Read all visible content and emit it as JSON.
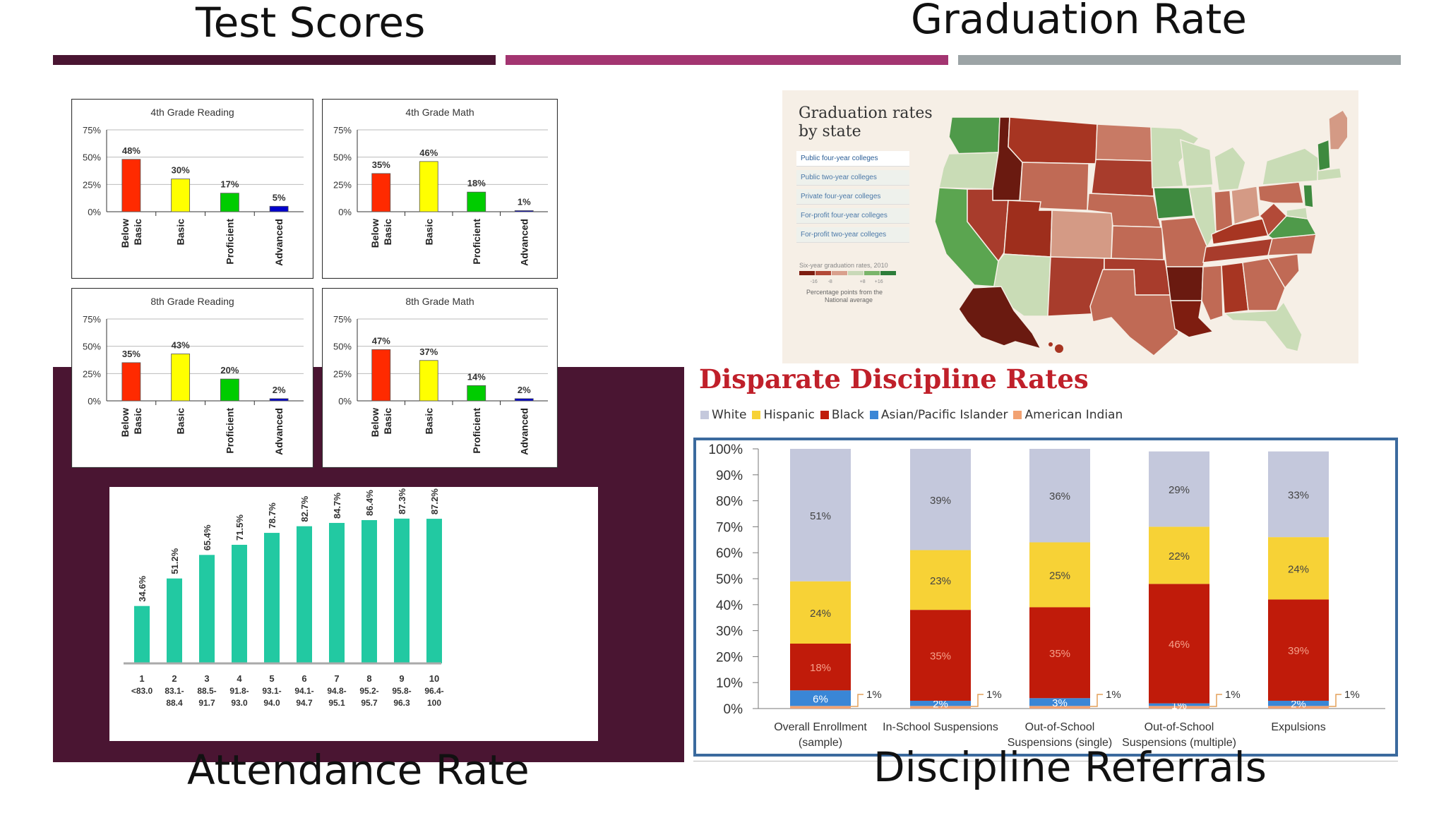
{
  "sections": {
    "test_scores": "Test Scores",
    "graduation_rate": "Graduation Rate",
    "attendance_rate": "Attendance Rate",
    "discipline_referrals": "Discipline Referrals"
  },
  "colors": {
    "plum": "#4a1532",
    "magenta": "#a33571",
    "gray": "#9ca4a6",
    "below_basic": "#ff2a00",
    "basic": "#ffff00",
    "proficient": "#00cc00",
    "advanced": "#0000cc",
    "attendance": "#22c9a2",
    "white": "#c4c8dc",
    "hispanic": "#f7d236",
    "black": "#c01b0a",
    "asian": "#3a86d6",
    "american_indian": "#f2a272"
  },
  "test_charts": [
    {
      "title": "4th Grade Reading",
      "categories": [
        "Below Basic",
        "Basic",
        "Proficient",
        "Advanced"
      ],
      "values": [
        48,
        30,
        17,
        5
      ],
      "labels": [
        "48%",
        "30%",
        "17%",
        "5%"
      ],
      "y_ticks": [
        "75%",
        "50%",
        "25%",
        "0%"
      ],
      "ylim": [
        0,
        75
      ]
    },
    {
      "title": "4th Grade Math",
      "categories": [
        "Below Basic",
        "Basic",
        "Proficient",
        "Advanced"
      ],
      "values": [
        35,
        46,
        18,
        1
      ],
      "labels": [
        "35%",
        "46%",
        "18%",
        "1%"
      ],
      "y_ticks": [
        "75%",
        "50%",
        "25%",
        "0%"
      ],
      "ylim": [
        0,
        75
      ]
    },
    {
      "title": "8th Grade Reading",
      "categories": [
        "Below Basic",
        "Basic",
        "Proficient",
        "Advanced"
      ],
      "values": [
        35,
        43,
        20,
        2
      ],
      "labels": [
        "35%",
        "43%",
        "20%",
        "2%"
      ],
      "y_ticks": [
        "75%",
        "50%",
        "25%",
        "0%"
      ],
      "ylim": [
        0,
        75
      ]
    },
    {
      "title": "8th Grade Math",
      "categories": [
        "Below Basic",
        "Basic",
        "Proficient",
        "Advanced"
      ],
      "values": [
        47,
        37,
        14,
        2
      ],
      "labels": [
        "47%",
        "37%",
        "14%",
        "2%"
      ],
      "y_ticks": [
        "75%",
        "50%",
        "25%",
        "0%"
      ],
      "ylim": [
        0,
        75
      ]
    }
  ],
  "chart_data": [
    {
      "type": "bar",
      "title": "4th Grade Reading",
      "categories": [
        "Below Basic",
        "Basic",
        "Proficient",
        "Advanced"
      ],
      "values": [
        48,
        30,
        17,
        5
      ],
      "ylim": [
        0,
        75
      ]
    },
    {
      "type": "bar",
      "title": "4th Grade Math",
      "categories": [
        "Below Basic",
        "Basic",
        "Proficient",
        "Advanced"
      ],
      "values": [
        35,
        46,
        18,
        1
      ],
      "ylim": [
        0,
        75
      ]
    },
    {
      "type": "bar",
      "title": "8th Grade Reading",
      "categories": [
        "Below Basic",
        "Basic",
        "Proficient",
        "Advanced"
      ],
      "values": [
        35,
        43,
        20,
        2
      ],
      "ylim": [
        0,
        75
      ]
    },
    {
      "type": "bar",
      "title": "8th Grade Math",
      "categories": [
        "Below Basic",
        "Basic",
        "Proficient",
        "Advanced"
      ],
      "values": [
        47,
        37,
        14,
        2
      ],
      "ylim": [
        0,
        75
      ]
    },
    {
      "type": "bar",
      "title": "",
      "categories": [
        "1",
        "2",
        "3",
        "4",
        "5",
        "6",
        "7",
        "8",
        "9",
        "10"
      ],
      "values": [
        34.6,
        51.2,
        65.4,
        71.5,
        78.7,
        82.7,
        84.7,
        86.4,
        87.3,
        87.2
      ],
      "ylim": [
        0,
        100
      ]
    },
    {
      "type": "bar",
      "title": "Disparate Discipline Rates",
      "categories": [
        "Overall Enrollment (sample)",
        "In-School Suspensions",
        "Out-of-School Suspensions (single)",
        "Out-of-School Suspensions (multiple)",
        "Expulsions"
      ],
      "series": [
        {
          "name": "American Indian",
          "values": [
            1,
            1,
            1,
            1,
            1
          ]
        },
        {
          "name": "Asian/Pacific Islander",
          "values": [
            6,
            2,
            3,
            1,
            2
          ]
        },
        {
          "name": "Black",
          "values": [
            18,
            35,
            35,
            46,
            39
          ]
        },
        {
          "name": "Hispanic",
          "values": [
            24,
            23,
            25,
            22,
            24
          ]
        },
        {
          "name": "White",
          "values": [
            51,
            39,
            36,
            29,
            33
          ]
        }
      ],
      "ylim": [
        0,
        100
      ]
    }
  ],
  "attendance": {
    "values": [
      34.6,
      51.2,
      65.4,
      71.5,
      78.7,
      82.7,
      84.7,
      86.4,
      87.3,
      87.2
    ],
    "labels": [
      "34.6%",
      "51.2%",
      "65.4%",
      "71.5%",
      "78.7%",
      "82.7%",
      "84.7%",
      "86.4%",
      "87.3%",
      "87.2%"
    ],
    "deciles": [
      "1",
      "2",
      "3",
      "4",
      "5",
      "6",
      "7",
      "8",
      "9",
      "10"
    ],
    "range_top": [
      "<83.0",
      "83.1-",
      "88.5-",
      "91.8-",
      "93.1-",
      "94.1-",
      "94.8-",
      "95.2-",
      "95.8-",
      "96.4-"
    ],
    "range_bottom": [
      "",
      "88.4",
      "91.7",
      "93.0",
      "94.0",
      "94.7",
      "95.1",
      "95.7",
      "96.3",
      "100"
    ]
  },
  "map": {
    "title_line1": "Graduation rates",
    "title_line2": "by state",
    "menu": [
      "Public four-year colleges",
      "Public two-year colleges",
      "Private four-year colleges",
      "For-profit four-year colleges",
      "For-profit two-year colleges"
    ],
    "legend_title": "Six-year graduation rates, 2010",
    "legend_ticks": [
      "-16",
      "-8",
      "",
      "+8",
      "+16"
    ],
    "legend_note_1": "Percentage points from the",
    "legend_note_2": "National average",
    "scale_colors": [
      "#7e1d10",
      "#b34a38",
      "#d9a08d",
      "#c9d9b8",
      "#7ab56a",
      "#2d7d3a"
    ]
  },
  "discipline": {
    "title": "Disparate Discipline Rates",
    "legend": [
      {
        "name": "White",
        "color": "#c4c8dc"
      },
      {
        "name": "Hispanic",
        "color": "#f7d236"
      },
      {
        "name": "Black",
        "color": "#c01b0a"
      },
      {
        "name": "Asian/Pacific Islander",
        "color": "#3a86d6"
      },
      {
        "name": "American Indian",
        "color": "#f2a272"
      }
    ],
    "y_ticks": [
      "100%",
      "90%",
      "80%",
      "70%",
      "60%",
      "50%",
      "40%",
      "30%",
      "20%",
      "10%",
      "0%"
    ],
    "categories_line1": [
      "Overall Enrollment",
      "In-School Suspensions",
      "Out-of-School",
      "Out-of-School",
      "Expulsions"
    ],
    "categories_line2": [
      "(sample)",
      "",
      "Suspensions (single)",
      "Suspensions (multiple)",
      ""
    ],
    "stacks": [
      {
        "ai": 1,
        "asian": 6,
        "black": 18,
        "hispanic": 24,
        "white": 51,
        "labels": {
          "asian": "6%",
          "black": "18%",
          "hispanic": "24%",
          "white": "51%",
          "ai": "1%"
        }
      },
      {
        "ai": 1,
        "asian": 2,
        "black": 35,
        "hispanic": 23,
        "white": 39,
        "labels": {
          "asian": "2%",
          "black": "35%",
          "hispanic": "23%",
          "white": "39%",
          "ai": "1%"
        }
      },
      {
        "ai": 1,
        "asian": 3,
        "black": 35,
        "hispanic": 25,
        "white": 36,
        "labels": {
          "asian": "3%",
          "black": "35%",
          "hispanic": "25%",
          "white": "36%",
          "ai": "1%"
        }
      },
      {
        "ai": 1,
        "asian": 1,
        "black": 46,
        "hispanic": 22,
        "white": 29,
        "labels": {
          "asian": "1%",
          "black": "46%",
          "hispanic": "22%",
          "white": "29%",
          "ai": "1%"
        }
      },
      {
        "ai": 1,
        "asian": 2,
        "black": 39,
        "hispanic": 24,
        "white": 33,
        "labels": {
          "asian": "2%",
          "black": "39%",
          "hispanic": "24%",
          "white": "33%",
          "ai": "1%"
        }
      }
    ]
  }
}
